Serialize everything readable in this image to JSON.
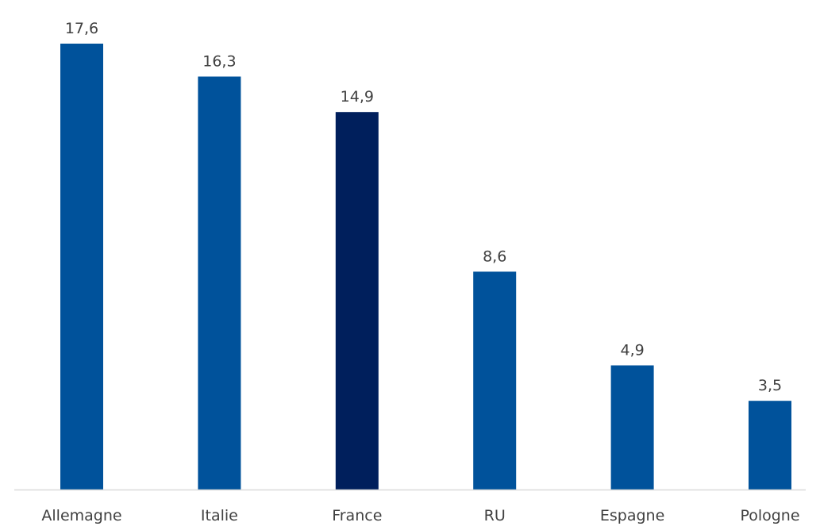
{
  "chart_data": {
    "type": "bar",
    "categories": [
      "Allemagne",
      "Italie",
      "France",
      "RU",
      "Espagne",
      "Pologne"
    ],
    "values": [
      17.6,
      16.3,
      14.9,
      8.6,
      4.9,
      3.5
    ],
    "value_labels": [
      "17,6",
      "16,3",
      "14,9",
      "8,6",
      "4,9",
      "3,5"
    ],
    "title": "",
    "xlabel": "",
    "ylabel": "",
    "ylim": [
      0,
      19.5
    ],
    "grid": false,
    "legend": "none",
    "bar_colors": [
      "#00529B",
      "#00529B",
      "#001F5C",
      "#00529B",
      "#00529B",
      "#00529B"
    ],
    "baseline_color": "#D9D9D9",
    "label_color": "#404040"
  }
}
